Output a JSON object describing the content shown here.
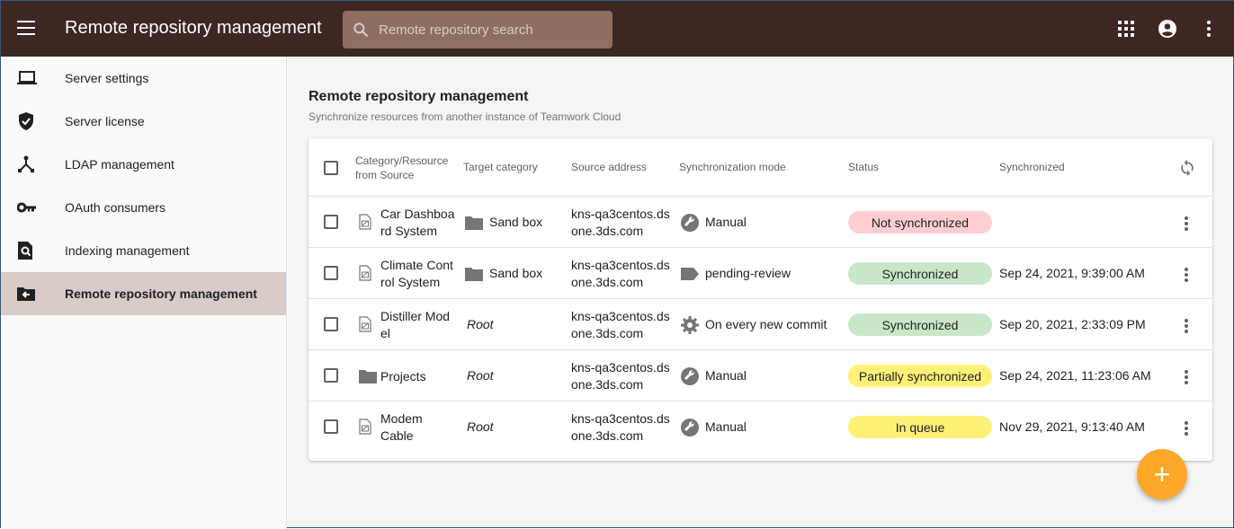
{
  "header": {
    "title": "Remote repository management",
    "search_placeholder": "Remote repository search"
  },
  "sidebar": {
    "items": [
      {
        "label": "Server settings",
        "icon": "laptop-icon"
      },
      {
        "label": "Server license",
        "icon": "shield-check-icon"
      },
      {
        "label": "LDAP management",
        "icon": "hub-icon"
      },
      {
        "label": "OAuth consumers",
        "icon": "key-icon"
      },
      {
        "label": "Indexing management",
        "icon": "search-file-icon"
      },
      {
        "label": "Remote repository management",
        "icon": "folder-arrow-icon",
        "active": true
      }
    ]
  },
  "page": {
    "title": "Remote repository management",
    "subtitle": "Synchronize resources from another instance of Teamwork Cloud"
  },
  "table": {
    "columns": [
      "Category/Resource from Source",
      "Target category",
      "Source address",
      "Synchronization mode",
      "Status",
      "Synchronized"
    ],
    "rows": [
      {
        "resource": "Car Dashboard System",
        "resource_l1": "Car Dashboa",
        "resource_l2": "rd System",
        "resource_icon": "model-file-icon",
        "target": "Sand box",
        "target_folder": true,
        "source_l1": "kns-qa3centos.ds",
        "source_l2": "one.3ds.com",
        "mode": "Manual",
        "mode_icon": "wrench-icon",
        "status": "Not synchronized",
        "status_color": "#ffcdd2",
        "synchronized": ""
      },
      {
        "resource": "Climate Control System",
        "resource_l1": "Climate Cont",
        "resource_l2": "rol System",
        "resource_icon": "model-file-icon",
        "target": "Sand box",
        "target_folder": true,
        "source_l1": "kns-qa3centos.ds",
        "source_l2": "one.3ds.com",
        "mode": "pending-review",
        "mode_icon": "label-icon",
        "status": "Synchronized",
        "status_color": "#c8e6c9",
        "synchronized": "Sep 24, 2021, 9:39:00 AM"
      },
      {
        "resource": "Distiller Model",
        "resource_l1": "Distiller Mod",
        "resource_l2": "el",
        "resource_icon": "model-file-icon",
        "target": "Root",
        "target_folder": false,
        "source_l1": "kns-qa3centos.ds",
        "source_l2": "one.3ds.com",
        "mode": "On every new commit",
        "mode_icon": "gear-icon",
        "status": "Synchronized",
        "status_color": "#c8e6c9",
        "synchronized": "Sep 20, 2021, 2:33:09 PM"
      },
      {
        "resource": "Projects",
        "resource_l1": "Projects",
        "resource_l2": "",
        "resource_icon": "folder-icon",
        "target": "Root",
        "target_folder": false,
        "source_l1": "kns-qa3centos.ds",
        "source_l2": "one.3ds.com",
        "mode": "Manual",
        "mode_icon": "wrench-icon",
        "status": "Partially synchronized",
        "status_color": "#fff176",
        "synchronized": "Sep 24, 2021, 11:23:06 AM"
      },
      {
        "resource": "Modem Cable",
        "resource_l1": "Modem",
        "resource_l2": "Cable",
        "resource_icon": "model-file-icon",
        "target": "Root",
        "target_folder": false,
        "source_l1": "kns-qa3centos.ds",
        "source_l2": "one.3ds.com",
        "mode": "Manual",
        "mode_icon": "wrench-icon",
        "status": "In queue",
        "status_color": "#fff176",
        "synchronized": "Nov 29, 2021, 9:13:40 AM"
      }
    ]
  },
  "fab": {
    "label": "+"
  },
  "colors": {
    "header": "#3e2723",
    "search": "#8d6e63",
    "active_nav": "#d7ccc8",
    "fab": "#ffa726"
  }
}
